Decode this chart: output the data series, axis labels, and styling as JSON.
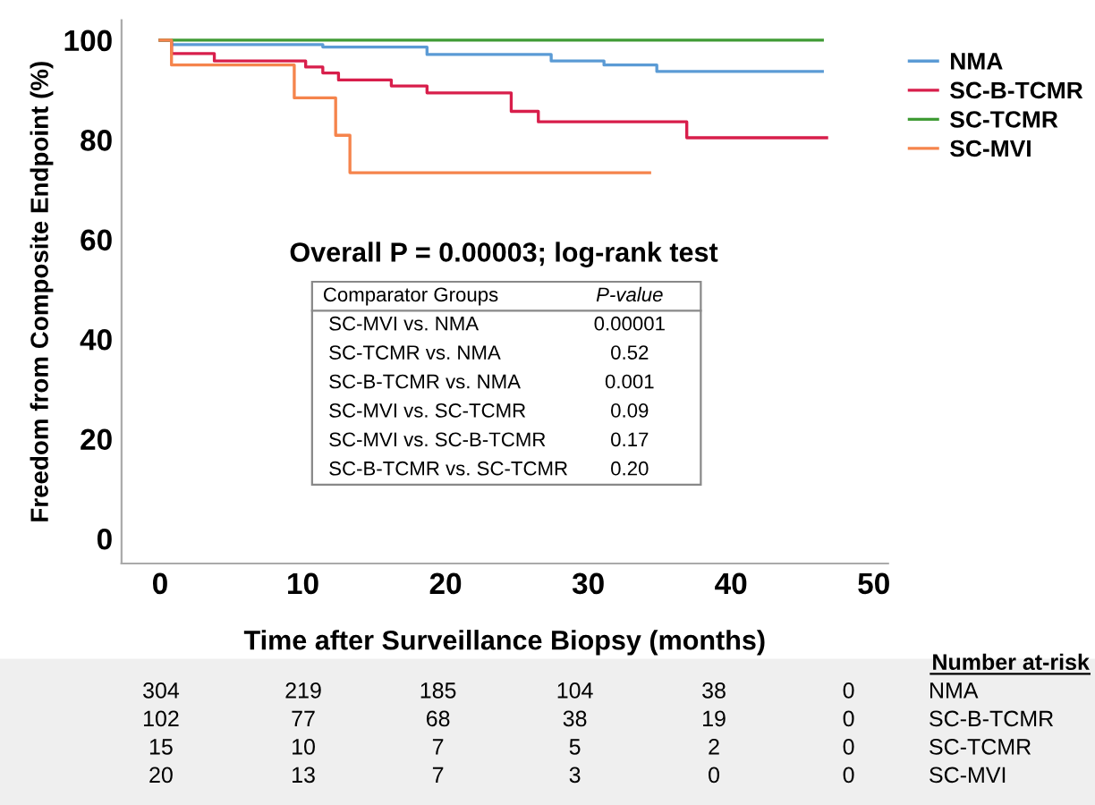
{
  "chart_data": {
    "type": "step",
    "xlabel": "Time after Surveillance Biopsy (months)",
    "ylabel": "Freedom from Composite Endpoint (%)",
    "series": [
      {
        "name": "NMA",
        "color": "#5b9bd5",
        "x": [
          0,
          0.8,
          11.4,
          18.7,
          27.4,
          31.1,
          34.8,
          46.4
        ],
        "values": [
          100,
          99.1,
          98.6,
          97.1,
          95.8,
          95.0,
          93.7,
          93.7
        ]
      },
      {
        "name": "SC-B-TCMR",
        "color": "#d81e4b",
        "x": [
          0,
          0.8,
          3.8,
          10.2,
          11.4,
          12.5,
          16.2,
          18.7,
          24.6,
          26.5,
          36.9,
          46.7
        ],
        "values": [
          100,
          97.3,
          95.8,
          94.6,
          93.4,
          92.0,
          90.8,
          89.4,
          85.7,
          83.6,
          80.4,
          80.4
        ]
      },
      {
        "name": "SC-TCMR",
        "color": "#3f9b35",
        "x": [
          0,
          46.4
        ],
        "values": [
          100,
          100
        ]
      },
      {
        "name": "SC-MVI",
        "color": "#f5844c",
        "x": [
          0,
          0.8,
          9.4,
          12.3,
          13.3,
          34.3
        ],
        "values": [
          100,
          95.0,
          88.4,
          80.9,
          73.4,
          73.4
        ]
      }
    ],
    "xlim": [
      -2.7,
      51
    ],
    "xticks": [
      0,
      10,
      20,
      30,
      40,
      50
    ],
    "ylim": [
      -5,
      104
    ],
    "yticks": [
      0,
      20,
      40,
      60,
      80,
      100
    ],
    "legend": "top right",
    "grid": false,
    "line_style": "solid",
    "annotations": [
      "Overall P = 0.00003; log-rank test",
      "Comparator Groups",
      "P-value",
      "SC-MVI vs. NMA",
      "0.00001",
      "SC-TCMR vs. NMA",
      "0.52",
      "SC-B-TCMR vs. NMA",
      "0.001",
      "SC-MVI vs. SC-TCMR",
      "0.09",
      "SC-MVI vs. SC-B-TCMR",
      "0.17",
      "SC-B-TCMR vs. SC-TCMR",
      "0.20",
      "Number at-risk",
      "304",
      "219",
      "185",
      "104",
      "38",
      "0",
      "NMA",
      "102",
      "77",
      "68",
      "38",
      "19",
      "0",
      "SC-B-TCMR",
      "15",
      "10",
      "7",
      "5",
      "2",
      "0",
      "SC-TCMR",
      "20",
      "13",
      "7",
      "3",
      "0",
      "0",
      "SC-MVI"
    ]
  }
}
